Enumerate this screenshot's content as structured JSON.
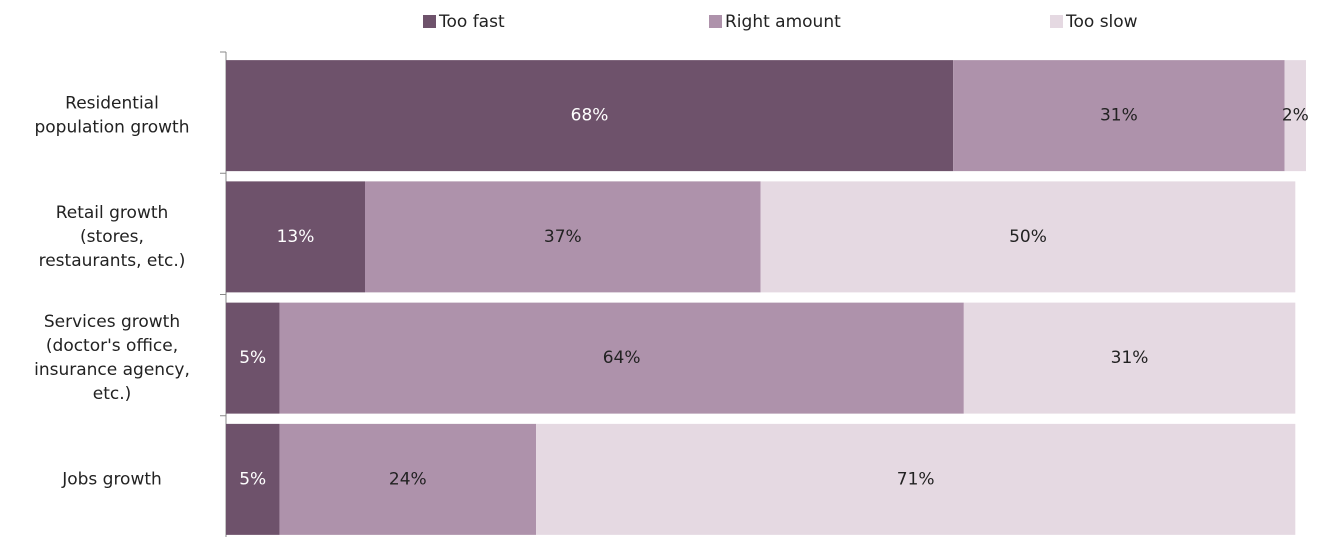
{
  "chart_data": {
    "type": "stacked-barh",
    "categories": [
      [
        "Residential",
        "population growth"
      ],
      [
        "Retail growth",
        "(stores,",
        "restaurants, etc.)"
      ],
      [
        "Services growth",
        "(doctor's office,",
        "insurance agency,",
        "etc.)"
      ],
      [
        "Jobs growth"
      ]
    ],
    "series": [
      {
        "name": "Too fast",
        "color": "#6e526b",
        "values": [
          68,
          13,
          5,
          5
        ],
        "value_labels": [
          "68%",
          "13%",
          "5%",
          "5%"
        ]
      },
      {
        "name": "Right amount",
        "color": "#ae92ab",
        "values": [
          31,
          37,
          64,
          24
        ],
        "value_labels": [
          "31%",
          "37%",
          "64%",
          "24%"
        ]
      },
      {
        "name": "Too slow",
        "color": "#e5d9e2",
        "values": [
          2,
          50,
          31,
          71
        ],
        "value_labels": [
          "2%",
          "50%",
          "31%",
          "71%"
        ]
      }
    ],
    "xlim": [
      0,
      101
    ],
    "legend": "top"
  }
}
